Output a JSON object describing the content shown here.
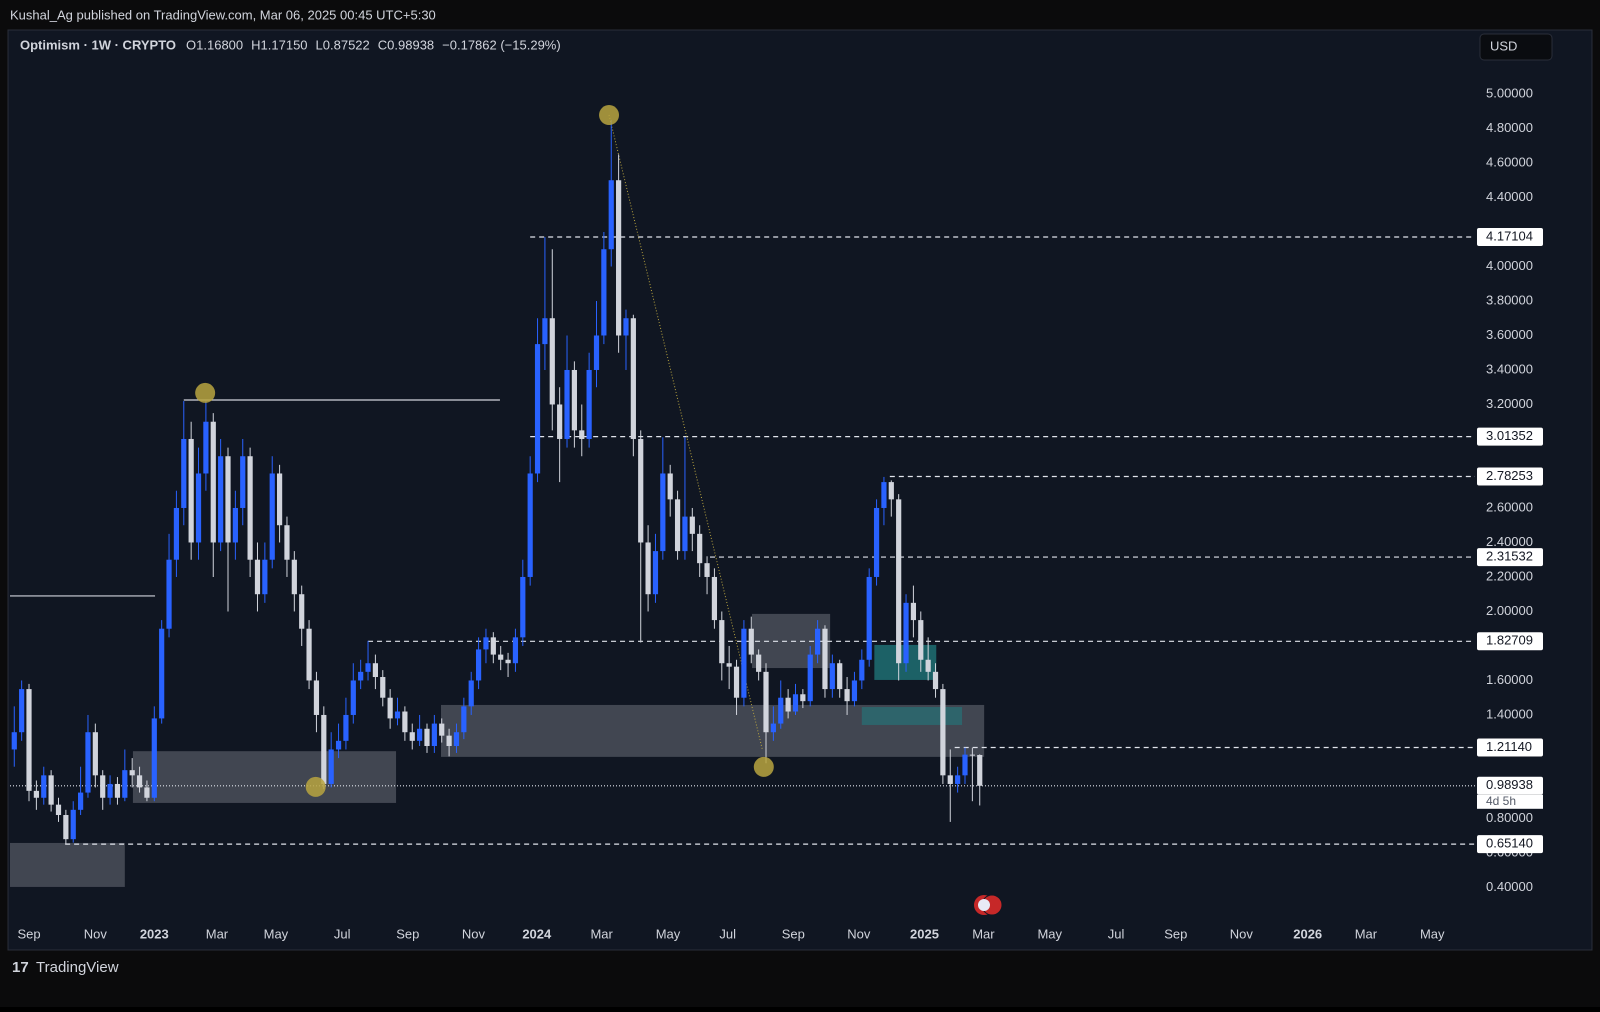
{
  "header": {
    "publisher": "Kushal_Ag published on TradingView.com, Mar 06, 2025 00:45 UTC+5:30",
    "brand": "TradingView"
  },
  "chart_data": {
    "type": "candlestick",
    "legend": {
      "symbol": "Optimism · 1W · CRYPTO",
      "ohlc": [
        {
          "key": "O",
          "text": "1.16800"
        },
        {
          "key": "H",
          "text": "1.17150"
        },
        {
          "key": "L",
          "text": "0.87522"
        },
        {
          "key": "C",
          "text": "0.98938"
        }
      ],
      "change": "−0.17862 (−15.29%)"
    },
    "currency": "USD",
    "countdown": "4d 5h",
    "up_color": "#2962ff",
    "down_color": "#d1d4dc",
    "xlim": [
      -2.58,
      196.2
    ],
    "ylim": [
      0.049,
      5.371
    ],
    "xticks": [
      {
        "value": 0,
        "label": "Sep"
      },
      {
        "value": 9,
        "label": "Nov"
      },
      {
        "value": 17,
        "label": "2023"
      },
      {
        "value": 25.5,
        "label": "Mar"
      },
      {
        "value": 33.5,
        "label": "May"
      },
      {
        "value": 42.5,
        "label": "Jul"
      },
      {
        "value": 51.4,
        "label": "Sep"
      },
      {
        "value": 60.3,
        "label": "Nov"
      },
      {
        "value": 68.9,
        "label": "2024"
      },
      {
        "value": 77.7,
        "label": "Mar"
      },
      {
        "value": 86.7,
        "label": "May"
      },
      {
        "value": 94.8,
        "label": "Jul"
      },
      {
        "value": 103.7,
        "label": "Sep"
      },
      {
        "value": 112.6,
        "label": "Nov"
      },
      {
        "value": 121.5,
        "label": "2025"
      },
      {
        "value": 129.5,
        "label": "Mar"
      },
      {
        "value": 138.5,
        "label": "May"
      },
      {
        "value": 147.5,
        "label": "Jul"
      },
      {
        "value": 155.6,
        "label": "Sep"
      },
      {
        "value": 164.5,
        "label": "Nov"
      },
      {
        "value": 173.5,
        "label": "2026"
      },
      {
        "value": 181.4,
        "label": "Mar"
      },
      {
        "value": 190.4,
        "label": "May"
      }
    ],
    "yticks": [
      {
        "value": 5,
        "label": "5.00000"
      },
      {
        "value": 4.8,
        "label": "4.80000"
      },
      {
        "value": 4.6,
        "label": "4.60000"
      },
      {
        "value": 4.4,
        "label": "4.40000"
      },
      {
        "value": 4,
        "label": "4.00000"
      },
      {
        "value": 3.8,
        "label": "3.80000"
      },
      {
        "value": 3.6,
        "label": "3.60000"
      },
      {
        "value": 3.4,
        "label": "3.40000"
      },
      {
        "value": 3.2,
        "label": "3.20000"
      },
      {
        "value": 2.6,
        "label": "2.60000"
      },
      {
        "value": 2.4,
        "label": "2.40000"
      },
      {
        "value": 2.2,
        "label": "2.20000"
      },
      {
        "value": 2,
        "label": "2.00000"
      },
      {
        "value": 1.6,
        "label": "1.60000"
      },
      {
        "value": 1.4,
        "label": "1.40000"
      },
      {
        "value": 0.8,
        "label": "0.80000"
      },
      {
        "value": 0.6,
        "label": "0.60000"
      },
      {
        "value": 0.4,
        "label": "0.40000"
      }
    ],
    "levels": [
      {
        "value": 4.17104,
        "label": "4.17104",
        "start": 68.0
      },
      {
        "value": 3.01352,
        "label": "3.01352",
        "start": 68.0
      },
      {
        "value": 2.78253,
        "label": "2.78253",
        "start": 116.8
      },
      {
        "value": 2.31532,
        "label": "2.31532",
        "start": 92.4
      },
      {
        "value": 1.82709,
        "label": "1.82709",
        "start": 46.0
      },
      {
        "value": 1.2114,
        "label": "1.21140",
        "start": 125.6
      },
      {
        "value": 0.98938,
        "label": "0.98938",
        "start": -2.58
      },
      {
        "value": 0.6514,
        "label": "0.65140",
        "start": 4.9
      }
    ],
    "zones": [
      {
        "x": [
          -2.58,
          13.0
        ],
        "y": [
          0.403,
          0.658
        ],
        "color": "#4a4f59"
      },
      {
        "x": [
          14.1,
          49.8
        ],
        "y": [
          0.89,
          1.19
        ],
        "color": "#4a4f59"
      },
      {
        "x": [
          55.9,
          129.6
        ],
        "y": [
          1.157,
          1.458
        ],
        "color": "#4a4f59"
      },
      {
        "x": [
          98.1,
          108.7
        ],
        "y": [
          1.672,
          1.986
        ],
        "color": "#4a4f59"
      },
      {
        "x": [
          114.7,
          123.1
        ],
        "y": [
          1.603,
          1.806
        ],
        "color": "#1f6f72"
      },
      {
        "x": [
          113.0,
          126.6
        ],
        "y": [
          1.342,
          1.446
        ],
        "color": "#2b6a70"
      }
    ],
    "hlines": [
      {
        "x": [
          21.0,
          63.9
        ],
        "y": 3.226
      },
      {
        "x": [
          -2.58,
          17.1
        ],
        "y": 2.09
      }
    ],
    "trendline": {
      "x": [
        78.7,
        99.5
      ],
      "y": [
        4.878,
        1.2
      ]
    },
    "markers": [
      {
        "x": 78.7,
        "y": 4.878
      },
      {
        "x": 23.9,
        "y": 3.267
      },
      {
        "x": 38.9,
        "y": 0.983
      },
      {
        "x": 99.7,
        "y": 1.099
      }
    ],
    "x": [
      -2,
      -1,
      0,
      1,
      2,
      3,
      4,
      5,
      6,
      7,
      8,
      9,
      10,
      11,
      12,
      13,
      14,
      15,
      16,
      17,
      18,
      19,
      20,
      21,
      22,
      23,
      24,
      25,
      26,
      27,
      28,
      29,
      30,
      31,
      32,
      33,
      34,
      35,
      36,
      37,
      38,
      39,
      40,
      41,
      42,
      43,
      44,
      45,
      46,
      47,
      48,
      49,
      50,
      51,
      52,
      53,
      54,
      55,
      56,
      57,
      58,
      59,
      60,
      61,
      62,
      63,
      64,
      65,
      66,
      67,
      68,
      69,
      70,
      71,
      72,
      73,
      74,
      75,
      76,
      77,
      78,
      79,
      80,
      81,
      82,
      83,
      84,
      85,
      86,
      87,
      88,
      89,
      90,
      91,
      92,
      93,
      94,
      95,
      96,
      97,
      98,
      99,
      100,
      101,
      102,
      103,
      104,
      105,
      106,
      107,
      108,
      109,
      110,
      111,
      112,
      113,
      114,
      115,
      116,
      117,
      118,
      119,
      120,
      121,
      122,
      123,
      124,
      125,
      126,
      127,
      128,
      129
    ],
    "candles": [
      [
        1.2,
        1.45,
        1.1,
        1.3
      ],
      [
        1.3,
        1.6,
        1.25,
        1.55
      ],
      [
        1.55,
        1.58,
        0.9,
        0.96
      ],
      [
        0.96,
        1.02,
        0.85,
        0.92
      ],
      [
        0.92,
        1.1,
        0.88,
        1.05
      ],
      [
        1.05,
        1.08,
        0.84,
        0.88
      ],
      [
        0.88,
        0.92,
        0.78,
        0.82
      ],
      [
        0.82,
        0.85,
        0.65,
        0.68
      ],
      [
        0.68,
        0.9,
        0.66,
        0.85
      ],
      [
        0.85,
        1.1,
        0.82,
        0.95
      ],
      [
        0.95,
        1.4,
        0.92,
        1.3
      ],
      [
        1.3,
        1.35,
        0.98,
        1.05
      ],
      [
        1.05,
        1.08,
        0.85,
        0.92
      ],
      [
        0.92,
        1.05,
        0.88,
        1.0
      ],
      [
        1.0,
        1.04,
        0.88,
        0.92
      ],
      [
        0.92,
        1.2,
        0.9,
        1.08
      ],
      [
        1.08,
        1.15,
        0.98,
        1.05
      ],
      [
        1.05,
        1.1,
        0.95,
        0.98
      ],
      [
        0.98,
        1.02,
        0.9,
        0.92
      ],
      [
        0.92,
        1.45,
        0.9,
        1.38
      ],
      [
        1.38,
        1.95,
        1.35,
        1.9
      ],
      [
        1.9,
        2.45,
        1.85,
        2.3
      ],
      [
        2.3,
        2.7,
        2.2,
        2.6
      ],
      [
        2.6,
        3.22,
        2.5,
        3.0
      ],
      [
        3.0,
        3.1,
        2.3,
        2.4
      ],
      [
        2.4,
        2.95,
        2.3,
        2.8
      ],
      [
        2.8,
        3.22,
        2.7,
        3.1
      ],
      [
        3.1,
        3.15,
        2.2,
        2.4
      ],
      [
        2.4,
        3.0,
        2.35,
        2.9
      ],
      [
        2.9,
        2.95,
        2.0,
        2.4
      ],
      [
        2.4,
        2.7,
        2.3,
        2.6
      ],
      [
        2.6,
        3.0,
        2.5,
        2.9
      ],
      [
        2.9,
        2.95,
        2.2,
        2.3
      ],
      [
        2.3,
        2.4,
        2.0,
        2.1
      ],
      [
        2.1,
        2.4,
        2.05,
        2.3
      ],
      [
        2.3,
        2.9,
        2.25,
        2.8
      ],
      [
        2.8,
        2.85,
        2.4,
        2.5
      ],
      [
        2.5,
        2.55,
        2.2,
        2.3
      ],
      [
        2.3,
        2.35,
        2.0,
        2.1
      ],
      [
        2.1,
        2.15,
        1.8,
        1.9
      ],
      [
        1.9,
        1.95,
        1.55,
        1.6
      ],
      [
        1.6,
        1.65,
        1.3,
        1.4
      ],
      [
        1.4,
        1.45,
        0.97,
        1.0
      ],
      [
        1.0,
        1.3,
        0.98,
        1.2
      ],
      [
        1.2,
        1.35,
        1.15,
        1.25
      ],
      [
        1.25,
        1.5,
        1.2,
        1.4
      ],
      [
        1.4,
        1.7,
        1.35,
        1.6
      ],
      [
        1.6,
        1.72,
        1.55,
        1.65
      ],
      [
        1.65,
        1.83,
        1.6,
        1.7
      ],
      [
        1.7,
        1.75,
        1.55,
        1.62
      ],
      [
        1.62,
        1.66,
        1.45,
        1.5
      ],
      [
        1.5,
        1.55,
        1.32,
        1.38
      ],
      [
        1.38,
        1.5,
        1.34,
        1.42
      ],
      [
        1.42,
        1.45,
        1.25,
        1.3
      ],
      [
        1.3,
        1.35,
        1.2,
        1.25
      ],
      [
        1.25,
        1.4,
        1.22,
        1.32
      ],
      [
        1.32,
        1.35,
        1.18,
        1.22
      ],
      [
        1.22,
        1.4,
        1.18,
        1.35
      ],
      [
        1.35,
        1.38,
        1.24,
        1.28
      ],
      [
        1.28,
        1.32,
        1.16,
        1.22
      ],
      [
        1.22,
        1.35,
        1.18,
        1.3
      ],
      [
        1.3,
        1.5,
        1.26,
        1.45
      ],
      [
        1.45,
        1.65,
        1.4,
        1.6
      ],
      [
        1.6,
        1.85,
        1.55,
        1.78
      ],
      [
        1.78,
        1.9,
        1.7,
        1.85
      ],
      [
        1.85,
        1.88,
        1.7,
        1.75
      ],
      [
        1.75,
        1.8,
        1.66,
        1.72
      ],
      [
        1.72,
        1.76,
        1.62,
        1.7
      ],
      [
        1.7,
        1.9,
        1.65,
        1.85
      ],
      [
        1.85,
        2.3,
        1.8,
        2.2
      ],
      [
        2.2,
        2.9,
        2.15,
        2.8
      ],
      [
        2.8,
        3.7,
        2.75,
        3.55
      ],
      [
        3.55,
        4.17,
        3.4,
        3.7
      ],
      [
        3.7,
        4.1,
        3.05,
        3.2
      ],
      [
        3.2,
        3.3,
        2.75,
        3.0
      ],
      [
        3.0,
        3.6,
        2.95,
        3.4
      ],
      [
        3.4,
        3.45,
        2.95,
        3.05
      ],
      [
        3.05,
        3.2,
        2.9,
        3.0
      ],
      [
        3.0,
        3.5,
        2.95,
        3.4
      ],
      [
        3.4,
        3.8,
        3.3,
        3.6
      ],
      [
        3.6,
        4.2,
        3.55,
        4.1
      ],
      [
        4.1,
        4.85,
        4.0,
        4.5
      ],
      [
        4.5,
        4.65,
        3.5,
        3.6
      ],
      [
        3.6,
        3.75,
        3.4,
        3.7
      ],
      [
        3.7,
        3.72,
        2.9,
        3.0
      ],
      [
        3.0,
        3.05,
        1.82,
        2.4
      ],
      [
        2.4,
        2.5,
        2.0,
        2.1
      ],
      [
        2.1,
        2.45,
        2.05,
        2.35
      ],
      [
        2.35,
        3.01,
        2.3,
        2.8
      ],
      [
        2.8,
        2.85,
        2.55,
        2.65
      ],
      [
        2.65,
        2.7,
        2.3,
        2.35
      ],
      [
        2.35,
        3.01,
        2.3,
        2.55
      ],
      [
        2.55,
        2.6,
        2.35,
        2.45
      ],
      [
        2.45,
        2.5,
        2.2,
        2.28
      ],
      [
        2.28,
        2.32,
        2.1,
        2.2
      ],
      [
        2.2,
        2.25,
        1.9,
        1.95
      ],
      [
        1.95,
        2.0,
        1.6,
        1.7
      ],
      [
        1.7,
        1.8,
        1.55,
        1.68
      ],
      [
        1.68,
        1.72,
        1.4,
        1.5
      ],
      [
        1.5,
        1.95,
        1.45,
        1.9
      ],
      [
        1.9,
        1.97,
        1.7,
        1.75
      ],
      [
        1.75,
        1.78,
        1.6,
        1.65
      ],
      [
        1.65,
        1.7,
        1.12,
        1.3
      ],
      [
        1.3,
        1.45,
        1.25,
        1.35
      ],
      [
        1.35,
        1.6,
        1.32,
        1.5
      ],
      [
        1.5,
        1.55,
        1.38,
        1.42
      ],
      [
        1.42,
        1.58,
        1.4,
        1.52
      ],
      [
        1.52,
        1.55,
        1.44,
        1.48
      ],
      [
        1.48,
        1.8,
        1.45,
        1.75
      ],
      [
        1.75,
        1.95,
        1.7,
        1.9
      ],
      [
        1.9,
        1.92,
        1.5,
        1.55
      ],
      [
        1.55,
        1.75,
        1.5,
        1.7
      ],
      [
        1.7,
        1.72,
        1.5,
        1.55
      ],
      [
        1.55,
        1.62,
        1.4,
        1.48
      ],
      [
        1.48,
        1.65,
        1.45,
        1.6
      ],
      [
        1.6,
        1.78,
        1.55,
        1.72
      ],
      [
        1.72,
        2.25,
        1.68,
        2.2
      ],
      [
        2.2,
        2.65,
        2.15,
        2.6
      ],
      [
        2.6,
        2.78,
        2.5,
        2.75
      ],
      [
        2.75,
        2.76,
        2.55,
        2.65
      ],
      [
        2.65,
        2.68,
        1.6,
        1.7
      ],
      [
        1.7,
        2.1,
        1.65,
        2.05
      ],
      [
        2.05,
        2.15,
        1.85,
        1.95
      ],
      [
        1.95,
        2.0,
        1.65,
        1.72
      ],
      [
        1.72,
        1.85,
        1.6,
        1.65
      ],
      [
        1.65,
        1.7,
        1.5,
        1.55
      ],
      [
        1.55,
        1.58,
        1.0,
        1.05
      ],
      [
        1.05,
        1.2,
        0.78,
        1.0
      ],
      [
        1.0,
        1.1,
        0.95,
        1.05
      ],
      [
        1.05,
        1.21,
        1.0,
        1.17
      ],
      [
        1.17,
        1.21,
        0.9,
        1.168
      ],
      [
        1.168,
        1.1715,
        0.87522,
        0.98938
      ]
    ]
  }
}
